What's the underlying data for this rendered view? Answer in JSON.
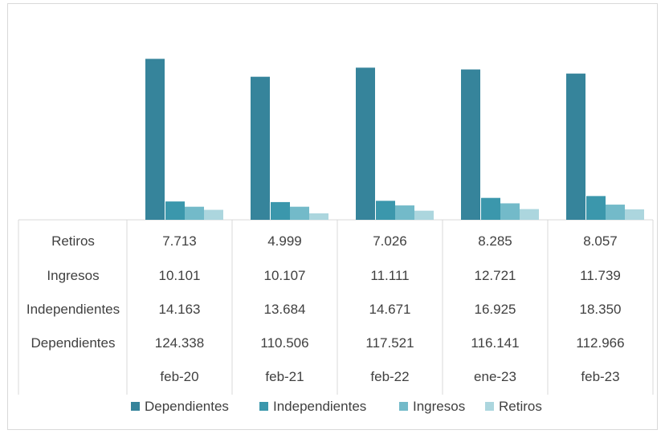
{
  "chart_data": {
    "type": "bar",
    "categories": [
      "feb-20",
      "feb-21",
      "feb-22",
      "ene-23",
      "feb-23"
    ],
    "series": [
      {
        "name": "Dependientes",
        "values": [
          124338,
          110506,
          117521,
          116141,
          112966
        ],
        "labels": [
          "124.338",
          "110.506",
          "117.521",
          "116.141",
          "112.966"
        ],
        "color": "#36849B"
      },
      {
        "name": "Independientes",
        "values": [
          14163,
          13684,
          14671,
          16925,
          18350
        ],
        "labels": [
          "14.163",
          "13.684",
          "14.671",
          "16.925",
          "18.350"
        ],
        "color": "#3B97AC"
      },
      {
        "name": "Ingresos",
        "values": [
          10101,
          10107,
          11111,
          12721,
          11739
        ],
        "labels": [
          "10.101",
          "10.107",
          "11.111",
          "12.721",
          "11.739"
        ],
        "color": "#73BAC9"
      },
      {
        "name": "Retiros",
        "values": [
          7713,
          4999,
          7026,
          8285,
          8057
        ],
        "labels": [
          "7.713",
          "4.999",
          "7.026",
          "8.285",
          "8.057"
        ],
        "color": "#ACD6DE"
      }
    ],
    "table_row_order": [
      "Retiros",
      "Ingresos",
      "Independientes",
      "Dependientes"
    ],
    "legend": [
      "Dependientes",
      "Independientes",
      "Ingresos",
      "Retiros"
    ],
    "legend_position": "bottom",
    "data_table": true,
    "grid": false,
    "ylim": [
      0,
      145000
    ]
  }
}
